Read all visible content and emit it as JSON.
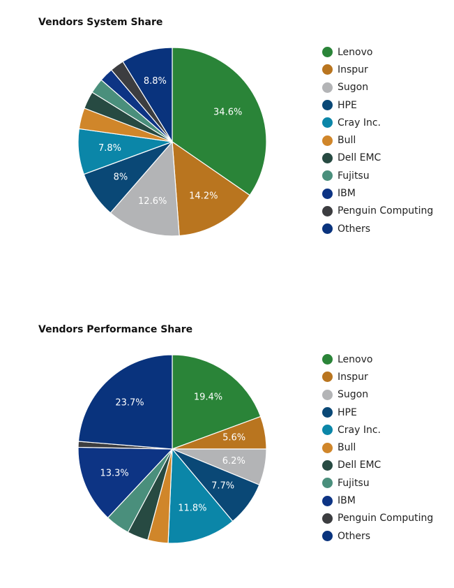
{
  "colors": {
    "Lenovo": "#2a8438",
    "Inspur": "#b9751f",
    "Sugon": "#b3b4b6",
    "HPE": "#0a4876",
    "Cray Inc.": "#0b86a8",
    "Bull": "#d0862a",
    "Dell EMC": "#274a42",
    "Fujitsu": "#4a8f7c",
    "IBM": "#0d3484",
    "Penguin Computing": "#3c3d40",
    "Others": "#09337d"
  },
  "chart_data": [
    {
      "type": "pie",
      "title": "Vendors System Share",
      "legend_position": "right",
      "categories": [
        "Lenovo",
        "Inspur",
        "Sugon",
        "HPE",
        "Cray Inc.",
        "Bull",
        "Dell EMC",
        "Fujitsu",
        "IBM",
        "Penguin Computing",
        "Others"
      ],
      "values": [
        34.6,
        14.2,
        12.6,
        8,
        7.8,
        3.6,
        3,
        2.6,
        2.4,
        2.4,
        8.8
      ],
      "labels": [
        "34.6%",
        "14.2%",
        "12.6%",
        "8%",
        "7.8%",
        "",
        "",
        "",
        "",
        "",
        "8.8%"
      ]
    },
    {
      "type": "pie",
      "title": "Vendors Performance Share",
      "legend_position": "right",
      "categories": [
        "Lenovo",
        "Inspur",
        "Sugon",
        "HPE",
        "Cray Inc.",
        "Bull",
        "Dell EMC",
        "Fujitsu",
        "IBM",
        "Penguin Computing",
        "Others"
      ],
      "values": [
        19.4,
        5.6,
        6.2,
        7.7,
        11.8,
        3.5,
        3.6,
        4.2,
        13.3,
        1,
        23.7
      ],
      "labels": [
        "19.4%",
        "5.6%",
        "6.2%",
        "7.7%",
        "11.8%",
        "",
        "",
        "",
        "13.3%",
        "",
        "23.7%"
      ]
    }
  ]
}
